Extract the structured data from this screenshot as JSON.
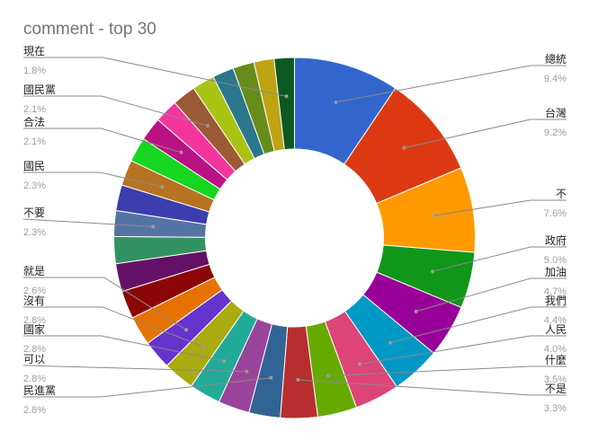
{
  "chart_data": {
    "type": "pie",
    "donut": true,
    "title": "comment - top 30",
    "legend": "labels with leader lines",
    "slices": [
      {
        "label": "總統",
        "value": 9.4,
        "pct_text": "9.4%",
        "color": "#3366cc"
      },
      {
        "label": "台灣",
        "value": 9.2,
        "pct_text": "9.2%",
        "color": "#dc3912"
      },
      {
        "label": "不",
        "value": 7.6,
        "pct_text": "7.6%",
        "color": "#ff9900"
      },
      {
        "label": "政府",
        "value": 5.0,
        "pct_text": "5.0%",
        "color": "#109618"
      },
      {
        "label": "加油",
        "value": 4.7,
        "pct_text": "4.7%",
        "color": "#990099"
      },
      {
        "label": "我們",
        "value": 4.4,
        "pct_text": "4.4%",
        "color": "#0099c6"
      },
      {
        "label": "人民",
        "value": 4.0,
        "pct_text": "4.0%",
        "color": "#dd4477"
      },
      {
        "label": "什麼",
        "value": 3.5,
        "pct_text": "3.5%",
        "color": "#66aa00"
      },
      {
        "label": "不是",
        "value": 3.3,
        "pct_text": "3.3%",
        "color": "#b82e2e"
      },
      {
        "label": "民進黨",
        "value": 2.8,
        "pct_text": "2.8%",
        "color": "#316395"
      },
      {
        "label": "可以",
        "value": 2.8,
        "pct_text": "2.8%",
        "color": "#994499"
      },
      {
        "label": "國家",
        "value": 2.8,
        "pct_text": "2.8%",
        "color": "#22aa99"
      },
      {
        "label": "沒有",
        "value": 2.8,
        "pct_text": "2.8%",
        "color": "#aaaa11"
      },
      {
        "label": "就是",
        "value": 2.6,
        "pct_text": "2.6%",
        "color": "#6633cc"
      },
      {
        "label": "",
        "value": 2.6,
        "pct_text": "",
        "color": "#e67300"
      },
      {
        "label": "",
        "value": 2.5,
        "pct_text": "",
        "color": "#8b0707"
      },
      {
        "label": "",
        "value": 2.5,
        "pct_text": "",
        "color": "#651067"
      },
      {
        "label": "",
        "value": 2.4,
        "pct_text": "",
        "color": "#329262"
      },
      {
        "label": "不要",
        "value": 2.3,
        "pct_text": "2.3%",
        "color": "#5574a6"
      },
      {
        "label": "",
        "value": 2.3,
        "pct_text": "",
        "color": "#3b3eac"
      },
      {
        "label": "國民",
        "value": 2.3,
        "pct_text": "2.3%",
        "color": "#b77322"
      },
      {
        "label": "",
        "value": 2.2,
        "pct_text": "",
        "color": "#16d620"
      },
      {
        "label": "合法",
        "value": 2.1,
        "pct_text": "2.1%",
        "color": "#b91383"
      },
      {
        "label": "",
        "value": 2.1,
        "pct_text": "",
        "color": "#f4359e"
      },
      {
        "label": "國民黨",
        "value": 2.1,
        "pct_text": "2.1%",
        "color": "#9c5935"
      },
      {
        "label": "",
        "value": 2.0,
        "pct_text": "",
        "color": "#a9c413"
      },
      {
        "label": "",
        "value": 1.9,
        "pct_text": "",
        "color": "#2a778d"
      },
      {
        "label": "",
        "value": 1.9,
        "pct_text": "",
        "color": "#668d1c"
      },
      {
        "label": "",
        "value": 1.8,
        "pct_text": "",
        "color": "#bea413"
      },
      {
        "label": "現在",
        "value": 1.8,
        "pct_text": "1.8%",
        "color": "#0c5922"
      }
    ]
  }
}
